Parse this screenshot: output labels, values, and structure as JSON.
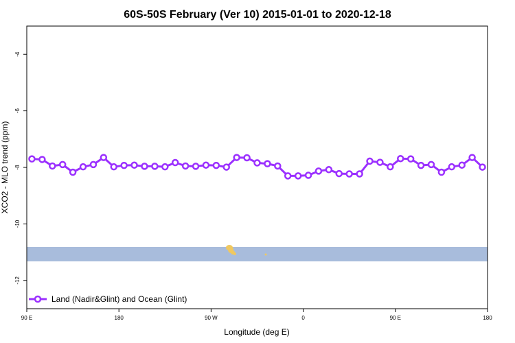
{
  "chart_data": {
    "type": "line",
    "title": "60S-50S February (Ver 10)   2015-01-01 to 2020-12-18",
    "xlabel": "Longitude (deg E)",
    "ylabel": "XCO2 - MLO trend (ppm)",
    "x_ticks": [
      {
        "value": 90,
        "label": "90 E"
      },
      {
        "value": 180,
        "label": "180"
      },
      {
        "value": 270,
        "label": "90 W"
      },
      {
        "value": 360,
        "label": "0"
      },
      {
        "value": 450,
        "label": "90 E"
      },
      {
        "value": 540,
        "label": "180"
      }
    ],
    "y_ticks": [
      {
        "value": -4,
        "label": "-4"
      },
      {
        "value": -6,
        "label": "-6"
      },
      {
        "value": -8,
        "label": "-8"
      },
      {
        "value": -10,
        "label": "-10"
      },
      {
        "value": -12,
        "label": "-12"
      }
    ],
    "xlim": [
      90,
      540
    ],
    "ylim": [
      -13,
      -3
    ],
    "grid": false,
    "legend_position": "bottom-left",
    "series": [
      {
        "name": "Land (Nadir&Glint) and Ocean (Glint)",
        "color": "#9b30ff",
        "x": [
          95,
          105,
          115,
          125,
          135,
          145,
          155,
          165,
          175,
          185,
          195,
          205,
          215,
          225,
          235,
          245,
          255,
          265,
          275,
          285,
          295,
          305,
          315,
          325,
          335,
          345,
          355,
          365,
          375,
          385,
          395,
          405,
          415,
          425,
          435,
          445,
          455,
          465,
          475,
          485,
          495,
          505,
          515,
          525,
          535
        ],
        "y": [
          -7.7,
          -7.72,
          -7.95,
          -7.9,
          -8.17,
          -7.98,
          -7.9,
          -7.65,
          -7.98,
          -7.93,
          -7.92,
          -7.96,
          -7.96,
          -7.98,
          -7.83,
          -7.95,
          -7.96,
          -7.92,
          -7.93,
          -7.99,
          -7.65,
          -7.66,
          -7.84,
          -7.87,
          -7.95,
          -8.3,
          -8.3,
          -8.28,
          -8.13,
          -8.08,
          -8.22,
          -8.23,
          -8.23,
          -7.78,
          -7.82,
          -7.98,
          -7.69,
          -7.7,
          -7.93,
          -7.9,
          -8.17,
          -7.98,
          -7.92,
          -7.65,
          -7.99
        ]
      }
    ],
    "map_strip": {
      "lat_range": [
        -60,
        -50
      ],
      "ocean_color": "#a8bcdc",
      "land_color": "#f0c860"
    }
  }
}
